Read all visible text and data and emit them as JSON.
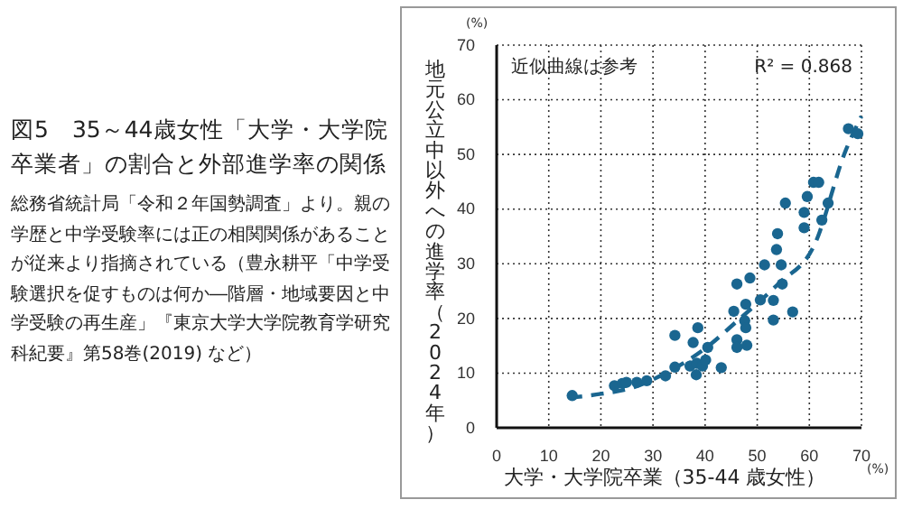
{
  "chart_data": {
    "type": "scatter",
    "title": "図5　35～44歳女性「大学・大学院卒業者」の割合と外部進学率の関係",
    "subtitle": "総務省統計局「令和２年国勢調査」より。親の学歴と中学受験率には正の相関関係があることが従来より指摘されている（豊永耕平「中学受験選択を促すものは何か―階層・地域要因と中学受験の再生産」『東京大学大学院教育学研究科紀要』第58巻(2019) など）",
    "xlabel": "大学・大学院卒業（35-44 歳女性）",
    "ylabel": "地元公立中以外への進学率（2024年）",
    "annotations": [
      "近似曲線は参考",
      "R² = 0.868",
      "(%)",
      "(%)"
    ],
    "xlim": [
      0,
      70
    ],
    "xticks": [
      0,
      10,
      20,
      30,
      40,
      50,
      60,
      70
    ],
    "ylim": [
      0,
      70
    ],
    "yticks": [
      0,
      10,
      20,
      30,
      40,
      50,
      60,
      70
    ],
    "grid": true,
    "marker": "circle",
    "series": [
      {
        "color": "#1a6690",
        "x": [
          14.5,
          22.6,
          24.1,
          24.9,
          26.9,
          28.8,
          32.4,
          34.2,
          34.2,
          37.1,
          37.7,
          38.3,
          38.6,
          38.4,
          39.5,
          40.1,
          40.5,
          43.1,
          45.5,
          46.1,
          46.1,
          46.1,
          47.6,
          47.8,
          47.8,
          48.0,
          48.6,
          50.6,
          51.4,
          52.9,
          53.1,
          53.1,
          53.7,
          54.6,
          54.8,
          56.8,
          67.5,
          69.3,
          55.4,
          63.6,
          53.9,
          59.0,
          59.0,
          59.6,
          60.8,
          61.8,
          62.4
        ],
        "values": [
          5.9,
          7.7,
          8.1,
          8.3,
          8.3,
          8.6,
          9.5,
          11.1,
          16.9,
          11.3,
          15.6,
          9.7,
          18.3,
          11.8,
          11.3,
          12.4,
          14.7,
          11.0,
          21.3,
          26.3,
          16.1,
          14.7,
          19.6,
          22.6,
          18.3,
          15.1,
          27.4,
          23.4,
          29.8,
          null,
          23.3,
          19.7,
          32.6,
          29.8,
          26.3,
          21.2,
          54.7,
          53.8,
          41.1,
          41.1,
          35.5,
          39.4,
          36.6,
          42.3,
          44.9,
          44.9,
          38.0
        ]
      },
      {
        "type": "line",
        "color": "#1a6690",
        "line_style": "dashed",
        "marker": "none",
        "x": [
          14,
          20,
          26,
          33,
          40,
          46,
          54,
          61,
          67,
          70
        ],
        "values": [
          5.5,
          6.2,
          7.3,
          10.3,
          14.5,
          19.4,
          26.3,
          33.5,
          50.8,
          57
        ]
      }
    ]
  }
}
